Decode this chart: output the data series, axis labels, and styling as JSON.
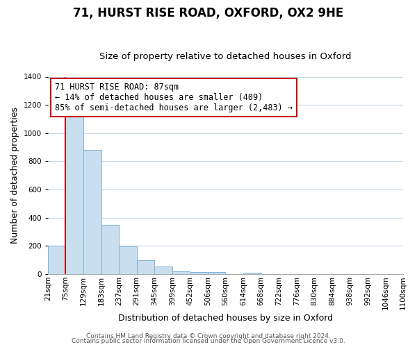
{
  "title": "71, HURST RISE ROAD, OXFORD, OX2 9HE",
  "subtitle": "Size of property relative to detached houses in Oxford",
  "xlabel": "Distribution of detached houses by size in Oxford",
  "ylabel": "Number of detached properties",
  "bin_edges": [
    "21sqm",
    "75sqm",
    "129sqm",
    "183sqm",
    "237sqm",
    "291sqm",
    "345sqm",
    "399sqm",
    "452sqm",
    "506sqm",
    "560sqm",
    "614sqm",
    "668sqm",
    "722sqm",
    "776sqm",
    "830sqm",
    "884sqm",
    "938sqm",
    "992sqm",
    "1046sqm",
    "1100sqm"
  ],
  "bar_heights": [
    200,
    1120,
    880,
    350,
    195,
    100,
    55,
    22,
    15,
    15,
    0,
    12,
    0,
    0,
    0,
    0,
    0,
    0,
    0,
    0
  ],
  "bar_color": "#c9dff0",
  "bar_edge_color": "#7fb3d3",
  "highlight_bar_index": 1,
  "highlight_line_color": "#cc0000",
  "annotation_line1": "71 HURST RISE ROAD: 87sqm",
  "annotation_line2": "← 14% of detached houses are smaller (409)",
  "annotation_line3": "85% of semi-detached houses are larger (2,483) →",
  "annotation_box_color": "#ffffff",
  "annotation_box_edge_color": "#cc0000",
  "ylim": [
    0,
    1400
  ],
  "yticks": [
    0,
    200,
    400,
    600,
    800,
    1000,
    1200,
    1400
  ],
  "footer_line1": "Contains HM Land Registry data © Crown copyright and database right 2024.",
  "footer_line2": "Contains public sector information licensed under the Open Government Licence v3.0.",
  "background_color": "#ffffff",
  "grid_color": "#c8d8ea",
  "title_fontsize": 12,
  "subtitle_fontsize": 9.5,
  "xlabel_fontsize": 9,
  "ylabel_fontsize": 9,
  "tick_fontsize": 7.5,
  "annotation_fontsize": 8.5,
  "footer_fontsize": 6.5
}
